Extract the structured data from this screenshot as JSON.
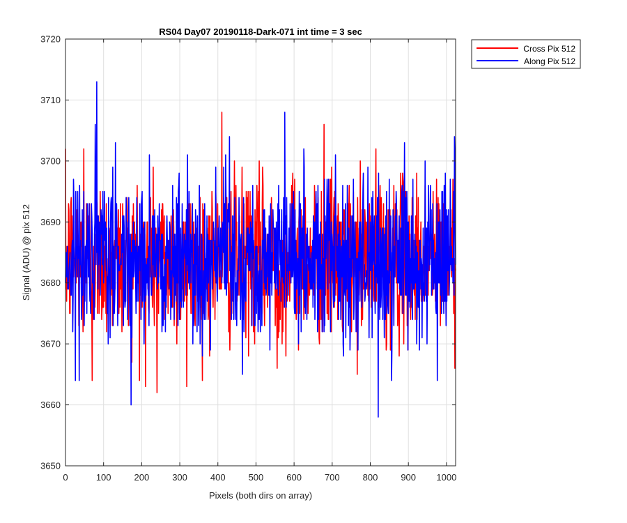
{
  "chart_data": {
    "type": "line",
    "title": "RS04 Day07 20190118-Dark-071 int time = 3 sec",
    "xlabel": "Pixels (both dirs on array)",
    "ylabel": "Signal (ADU) @ pix 512",
    "xlim": [
      0,
      1024
    ],
    "ylim": [
      3650,
      3720
    ],
    "x_ticks": [
      0,
      100,
      200,
      300,
      400,
      500,
      600,
      700,
      800,
      900,
      1000
    ],
    "y_ticks": [
      3650,
      3660,
      3670,
      3680,
      3690,
      3700,
      3710,
      3720
    ],
    "x_tick_labels": [
      "0",
      "100",
      "200",
      "300",
      "400",
      "500",
      "600",
      "700",
      "800",
      "900",
      "1000"
    ],
    "y_tick_labels": [
      "3650",
      "3660",
      "3670",
      "3680",
      "3690",
      "3700",
      "3710",
      "3720"
    ],
    "grid": true,
    "legend_position": "outside top-right",
    "series": [
      {
        "name": "Cross Pix 512",
        "color": "#ff0000",
        "points_per_series": 1024,
        "mean": 3684,
        "range": [
          3662,
          3708
        ],
        "noted_extrema": [
          [
            48,
            3702
          ],
          [
            70,
            3664
          ],
          [
            210,
            3663
          ],
          [
            240,
            3662
          ],
          [
            318,
            3663
          ],
          [
            410,
            3708
          ],
          [
            555,
            3666
          ],
          [
            678,
            3706
          ]
        ]
      },
      {
        "name": "Along Pix 512",
        "color": "#0000ff",
        "points_per_series": 1024,
        "mean": 3684,
        "range": [
          3658,
          3713
        ],
        "noted_extrema": [
          [
            82,
            3713
          ],
          [
            220,
            3701
          ],
          [
            320,
            3701
          ],
          [
            430,
            3704
          ],
          [
            575,
            3708
          ],
          [
            625,
            3702
          ],
          [
            755,
            3697
          ],
          [
            820,
            3658
          ],
          [
            855,
            3664
          ],
          [
            975,
            3664
          ],
          [
            1020,
            3704
          ]
        ]
      }
    ]
  }
}
